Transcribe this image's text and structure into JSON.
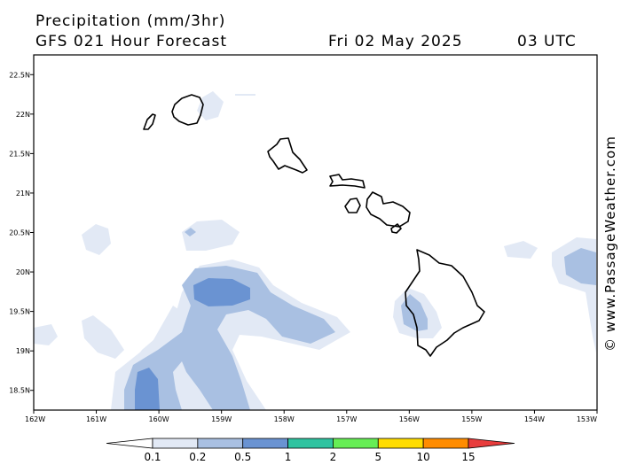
{
  "header": {
    "title": "Precipitation (mm/3hr)",
    "subtitle": "GFS 021 Hour Forecast",
    "date": "Fri 02 May 2025",
    "time": "03 UTC"
  },
  "watermark": "© www.PassageWeather.com",
  "axes": {
    "lat_ticks": [
      {
        "label": "22.5N",
        "value": 22.5
      },
      {
        "label": "22N",
        "value": 22
      },
      {
        "label": "21.5N",
        "value": 21.5
      },
      {
        "label": "21N",
        "value": 21
      },
      {
        "label": "20.5N",
        "value": 20.5
      },
      {
        "label": "20N",
        "value": 20
      },
      {
        "label": "19.5N",
        "value": 19.5
      },
      {
        "label": "19N",
        "value": 19
      },
      {
        "label": "18.5N",
        "value": 18.5
      }
    ],
    "lon_ticks": [
      {
        "label": "162W",
        "value": -162
      },
      {
        "label": "161W",
        "value": -161
      },
      {
        "label": "160W",
        "value": -160
      },
      {
        "label": "159W",
        "value": -159
      },
      {
        "label": "158W",
        "value": -158
      },
      {
        "label": "157W",
        "value": -157
      },
      {
        "label": "156W",
        "value": -156
      },
      {
        "label": "155W",
        "value": -155
      },
      {
        "label": "154W",
        "value": -154
      },
      {
        "label": "153W",
        "value": -153
      }
    ]
  },
  "colorbar": {
    "labels": [
      "0.1",
      "0.2",
      "0.5",
      "1",
      "2",
      "5",
      "10",
      "15"
    ],
    "colors": [
      "#ffffff",
      "#e2e9f5",
      "#a9c0e2",
      "#6a93d2",
      "#2fc3a0",
      "#66ee55",
      "#ffdd00",
      "#ff8c00",
      "#e83c3c"
    ]
  },
  "colors": {
    "light": "#e2e9f5",
    "medium": "#a9c0e2",
    "dark": "#6a93d2",
    "coast": "#000000"
  }
}
